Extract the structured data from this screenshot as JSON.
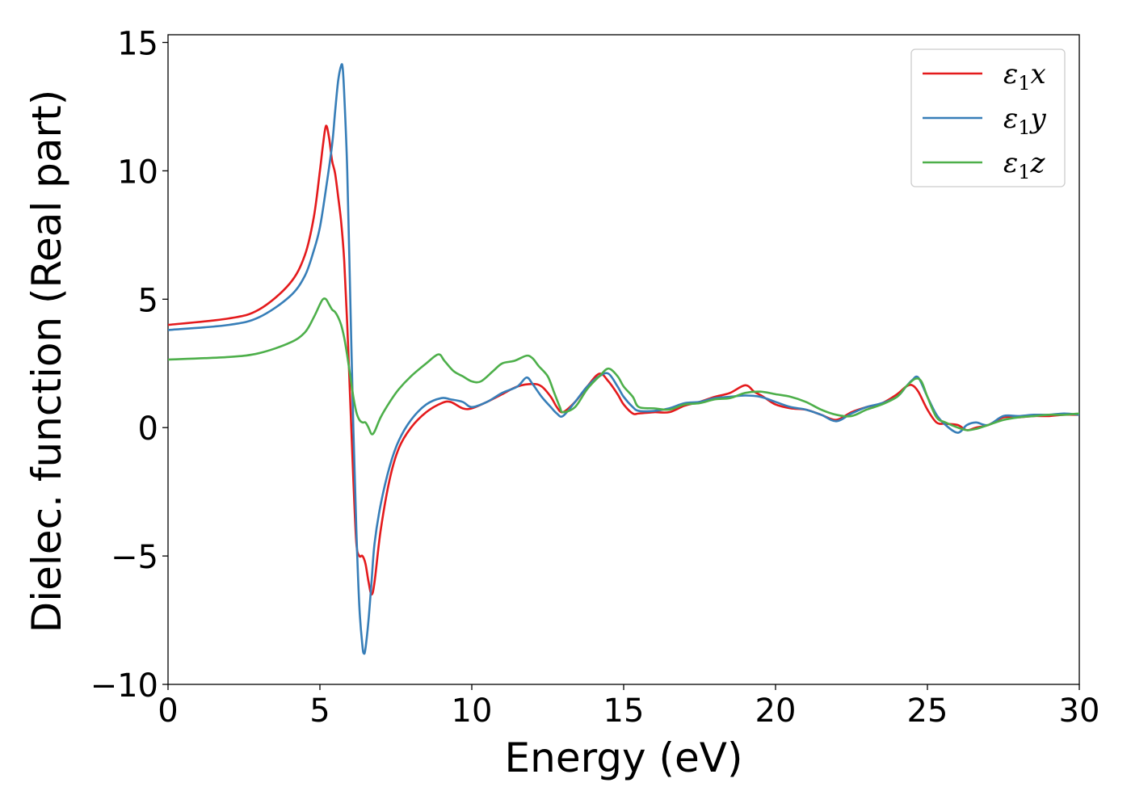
{
  "chart_data": {
    "type": "line",
    "title": "",
    "xlabel": "Energy (eV)",
    "ylabel": "Dielec. function (Real part)",
    "xlim": [
      0,
      30
    ],
    "ylim": [
      -10,
      15.3
    ],
    "xticks": [
      0,
      5,
      10,
      15,
      20,
      25,
      30
    ],
    "yticks": [
      -10,
      -5,
      0,
      5,
      10,
      15
    ],
    "xtick_labels": [
      "0",
      "5",
      "10",
      "15",
      "20",
      "25",
      "30"
    ],
    "ytick_labels": [
      "−10",
      "−5",
      "0",
      "5",
      "10",
      "15"
    ],
    "grid": false,
    "legend_position": "top-right",
    "series": [
      {
        "name": "ε₁x",
        "legend_base": "ε",
        "legend_sub": "1",
        "legend_var": "x",
        "color": "#e41a1c",
        "x": [
          0,
          2,
          3,
          4,
          4.5,
          4.8,
          5.0,
          5.1,
          5.2,
          5.3,
          5.4,
          5.5,
          5.6,
          5.7,
          5.8,
          5.9,
          6.0,
          6.1,
          6.2,
          6.3,
          6.4,
          6.5,
          6.6,
          6.7,
          6.8,
          7.0,
          7.3,
          7.6,
          8.0,
          8.5,
          9.0,
          9.3,
          9.7,
          10.0,
          10.5,
          11.0,
          11.5,
          12.0,
          12.3,
          12.6,
          12.8,
          13.0,
          13.4,
          13.8,
          14.2,
          14.5,
          14.8,
          15.0,
          15.3,
          15.5,
          16.0,
          16.5,
          17.0,
          17.5,
          18.0,
          18.5,
          19.0,
          19.3,
          19.6,
          20.0,
          20.5,
          21.0,
          21.5,
          22.0,
          22.5,
          23.0,
          23.5,
          24.0,
          24.3,
          24.5,
          24.7,
          25.0,
          25.3,
          25.6,
          26.0,
          26.3,
          26.6,
          27.0,
          27.5,
          28.0,
          28.5,
          29.0,
          29.5,
          30.0
        ],
        "values": [
          4.0,
          4.25,
          4.6,
          5.6,
          6.7,
          8.2,
          10.0,
          11.0,
          11.75,
          11.3,
          10.4,
          9.9,
          9.0,
          8.0,
          6.5,
          4.0,
          1.0,
          -2.0,
          -4.5,
          -5.0,
          -5.0,
          -5.3,
          -6.0,
          -6.5,
          -6.0,
          -4.0,
          -2.0,
          -0.8,
          0.0,
          0.6,
          0.95,
          1.0,
          0.75,
          0.75,
          1.0,
          1.3,
          1.6,
          1.7,
          1.6,
          1.2,
          0.8,
          0.6,
          1.0,
          1.6,
          2.1,
          1.8,
          1.3,
          0.9,
          0.55,
          0.55,
          0.6,
          0.6,
          0.85,
          1.0,
          1.2,
          1.35,
          1.65,
          1.4,
          1.2,
          0.9,
          0.75,
          0.7,
          0.5,
          0.3,
          0.6,
          0.8,
          0.95,
          1.3,
          1.6,
          1.65,
          1.4,
          0.7,
          0.2,
          0.15,
          0.1,
          -0.1,
          0.0,
          0.1,
          0.4,
          0.4,
          0.45,
          0.45,
          0.5,
          0.5
        ]
      },
      {
        "name": "ε₁y",
        "legend_base": "ε",
        "legend_sub": "1",
        "legend_var": "y",
        "color": "#377eb8",
        "x": [
          0,
          2,
          3,
          4,
          4.5,
          4.8,
          5.0,
          5.2,
          5.4,
          5.5,
          5.6,
          5.7,
          5.75,
          5.8,
          5.9,
          6.0,
          6.1,
          6.2,
          6.3,
          6.4,
          6.45,
          6.5,
          6.6,
          6.7,
          6.8,
          7.0,
          7.3,
          7.6,
          8.0,
          8.5,
          9.0,
          9.3,
          9.7,
          10.0,
          10.5,
          11.0,
          11.5,
          11.8,
          12.0,
          12.3,
          12.6,
          12.8,
          13.0,
          13.4,
          13.8,
          14.2,
          14.5,
          14.8,
          15.0,
          15.3,
          15.5,
          16.0,
          16.5,
          17.0,
          17.5,
          18.0,
          18.5,
          19.0,
          19.5,
          20.0,
          20.5,
          21.0,
          21.5,
          22.0,
          22.5,
          23.0,
          23.5,
          24.0,
          24.3,
          24.5,
          24.7,
          25.0,
          25.3,
          25.6,
          26.0,
          26.3,
          26.6,
          27.0,
          27.5,
          28.0,
          28.5,
          29.0,
          29.5,
          30.0
        ],
        "values": [
          3.8,
          4.0,
          4.3,
          5.1,
          5.9,
          6.9,
          7.8,
          9.3,
          11.0,
          12.3,
          13.5,
          14.1,
          14.0,
          13.0,
          10.0,
          5.0,
          0.0,
          -4.0,
          -7.0,
          -8.5,
          -8.8,
          -8.6,
          -7.5,
          -6.0,
          -4.5,
          -3.0,
          -1.5,
          -0.5,
          0.3,
          0.9,
          1.15,
          1.1,
          1.0,
          0.8,
          1.0,
          1.35,
          1.6,
          1.95,
          1.7,
          1.2,
          0.8,
          0.55,
          0.45,
          1.0,
          1.6,
          2.0,
          2.1,
          1.6,
          1.2,
          0.8,
          0.65,
          0.65,
          0.75,
          0.95,
          1.0,
          1.15,
          1.2,
          1.25,
          1.2,
          1.0,
          0.8,
          0.7,
          0.5,
          0.25,
          0.55,
          0.8,
          0.95,
          1.2,
          1.6,
          1.85,
          1.95,
          1.2,
          0.5,
          0.1,
          -0.2,
          0.1,
          0.2,
          0.1,
          0.45,
          0.45,
          0.5,
          0.5,
          0.55,
          0.5
        ]
      },
      {
        "name": "ε₁z",
        "legend_base": "ε",
        "legend_sub": "1",
        "legend_var": "z",
        "color": "#4daf4a",
        "x": [
          0,
          2,
          3,
          4,
          4.5,
          4.8,
          5.0,
          5.1,
          5.2,
          5.3,
          5.4,
          5.5,
          5.6,
          5.7,
          5.8,
          5.9,
          6.0,
          6.1,
          6.2,
          6.3,
          6.4,
          6.5,
          6.6,
          6.7,
          6.8,
          7.0,
          7.3,
          7.6,
          8.0,
          8.5,
          8.9,
          9.1,
          9.4,
          9.7,
          10.0,
          10.3,
          10.7,
          11.0,
          11.4,
          11.8,
          12.0,
          12.2,
          12.5,
          12.7,
          12.9,
          13.0,
          13.4,
          13.8,
          14.2,
          14.5,
          14.8,
          15.0,
          15.3,
          15.5,
          16.0,
          16.5,
          17.0,
          17.5,
          18.0,
          18.5,
          19.0,
          19.5,
          20.0,
          20.5,
          21.0,
          21.5,
          22.0,
          22.5,
          23.0,
          23.5,
          24.0,
          24.3,
          24.6,
          24.8,
          25.0,
          25.3,
          25.6,
          26.0,
          26.3,
          26.6,
          27.0,
          27.5,
          28.0,
          28.5,
          29.0,
          29.5,
          30.0
        ],
        "values": [
          2.65,
          2.75,
          2.9,
          3.3,
          3.7,
          4.3,
          4.8,
          5.0,
          5.0,
          4.8,
          4.6,
          4.5,
          4.3,
          4.0,
          3.5,
          2.8,
          2.0,
          1.2,
          0.6,
          0.3,
          0.2,
          0.2,
          0.0,
          -0.25,
          -0.15,
          0.4,
          1.0,
          1.5,
          2.0,
          2.5,
          2.85,
          2.6,
          2.2,
          2.0,
          1.8,
          1.8,
          2.2,
          2.5,
          2.6,
          2.8,
          2.7,
          2.4,
          2.0,
          1.4,
          0.8,
          0.6,
          0.8,
          1.5,
          2.0,
          2.3,
          2.0,
          1.6,
          1.2,
          0.8,
          0.75,
          0.7,
          0.9,
          0.95,
          1.1,
          1.15,
          1.35,
          1.4,
          1.3,
          1.2,
          1.0,
          0.7,
          0.5,
          0.45,
          0.7,
          0.9,
          1.2,
          1.6,
          1.9,
          1.8,
          1.2,
          0.4,
          0.2,
          0.0,
          -0.1,
          -0.05,
          0.1,
          0.3,
          0.4,
          0.45,
          0.5,
          0.5,
          0.55
        ]
      }
    ]
  }
}
